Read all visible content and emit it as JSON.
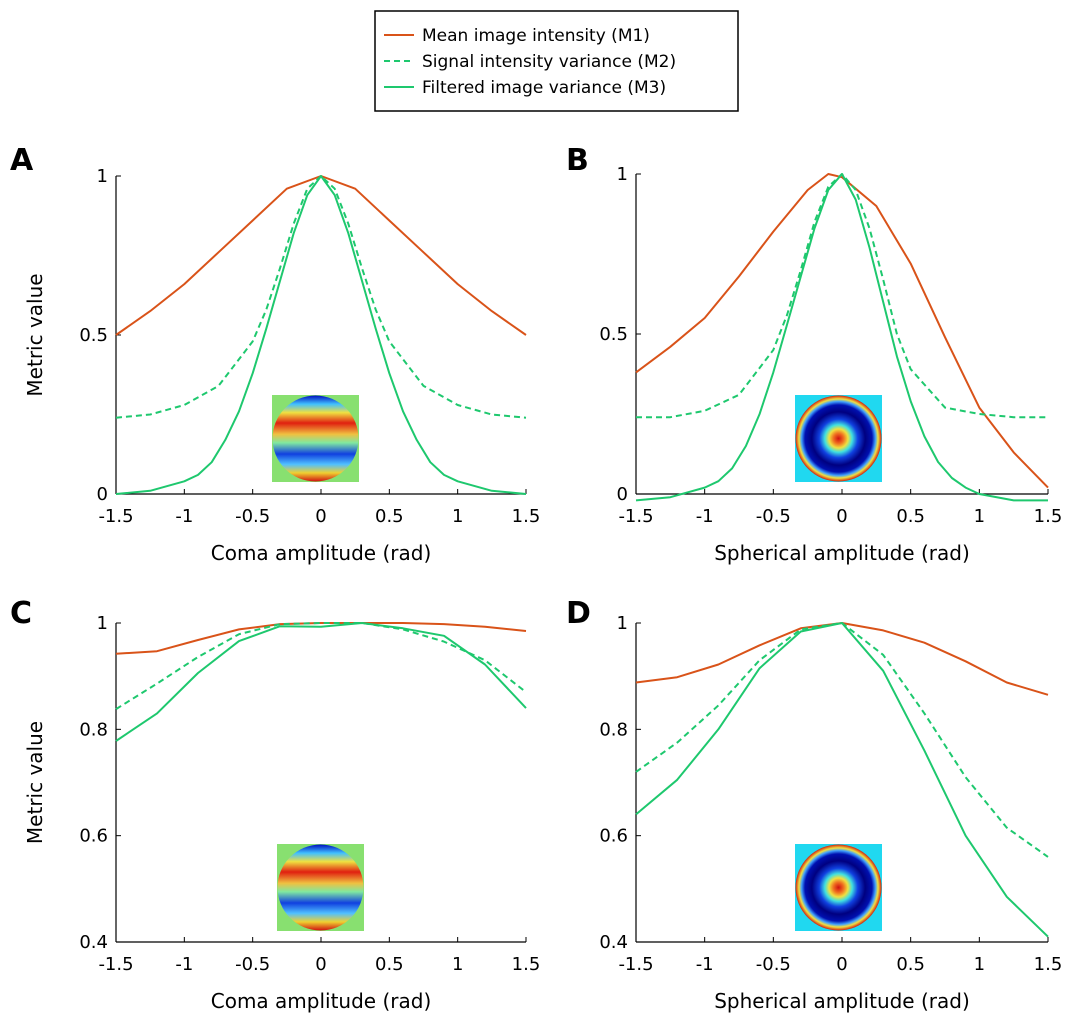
{
  "legend": {
    "entries": [
      {
        "label": "Mean image intensity (M1)",
        "color": "#d95319",
        "dash": "solid"
      },
      {
        "label": "Signal intensity variance (M2)",
        "color": "#1ec86e",
        "dash": "dashed"
      },
      {
        "label": "Filtered image variance (M3)",
        "color": "#1ec86e",
        "dash": "solid"
      }
    ]
  },
  "chart_data": [
    {
      "panel": "A",
      "type": "line",
      "xlabel": "Coma amplitude (rad)",
      "ylabel": "Metric value",
      "xlim": [
        -1.5,
        1.5
      ],
      "ylim": [
        0,
        1
      ],
      "xticks": [
        "-1.5",
        "-1",
        "-0.5",
        "0",
        "0.5",
        "1",
        "1.5"
      ],
      "yticks": [
        "0",
        "0.5",
        "1"
      ],
      "inset": "coma",
      "series": [
        {
          "name": "Mean image intensity (M1)",
          "x": [
            -1.5,
            -1.25,
            -1,
            -0.75,
            -0.5,
            -0.25,
            0,
            0.25,
            0.5,
            0.75,
            1,
            1.25,
            1.5
          ],
          "values": [
            0.5,
            0.575,
            0.66,
            0.76,
            0.86,
            0.96,
            1.0,
            0.96,
            0.86,
            0.76,
            0.66,
            0.575,
            0.5
          ]
        },
        {
          "name": "Signal intensity variance (M2)",
          "x": [
            -1.5,
            -1.25,
            -1,
            -0.75,
            -0.5,
            -0.4,
            -0.3,
            -0.2,
            -0.1,
            0,
            0.1,
            0.2,
            0.3,
            0.4,
            0.5,
            0.75,
            1,
            1.25,
            1.5
          ],
          "values": [
            0.24,
            0.25,
            0.28,
            0.34,
            0.48,
            0.58,
            0.71,
            0.85,
            0.96,
            1.0,
            0.96,
            0.85,
            0.71,
            0.58,
            0.48,
            0.34,
            0.28,
            0.25,
            0.24
          ]
        },
        {
          "name": "Filtered image variance (M3)",
          "x": [
            -1.5,
            -1.25,
            -1,
            -0.9,
            -0.8,
            -0.7,
            -0.6,
            -0.5,
            -0.4,
            -0.3,
            -0.2,
            -0.1,
            0,
            0.1,
            0.2,
            0.3,
            0.4,
            0.5,
            0.6,
            0.7,
            0.8,
            0.9,
            1,
            1.25,
            1.5
          ],
          "values": [
            0,
            0.01,
            0.04,
            0.06,
            0.1,
            0.17,
            0.26,
            0.38,
            0.52,
            0.67,
            0.82,
            0.94,
            1.0,
            0.94,
            0.82,
            0.67,
            0.52,
            0.38,
            0.26,
            0.17,
            0.1,
            0.06,
            0.04,
            0.01,
            0
          ]
        }
      ]
    },
    {
      "panel": "B",
      "type": "line",
      "xlabel": "Spherical amplitude (rad)",
      "ylabel": "",
      "xlim": [
        -1.5,
        1.5
      ],
      "ylim": [
        0,
        1
      ],
      "xticks": [
        "-1.5",
        "-1",
        "-0.5",
        "0",
        "0.5",
        "1",
        "1.5"
      ],
      "yticks": [
        "0",
        "0.5",
        "1"
      ],
      "inset": "spherical",
      "series": [
        {
          "name": "Mean image intensity (M1)",
          "x": [
            -1.5,
            -1.25,
            -1,
            -0.75,
            -0.5,
            -0.25,
            -0.1,
            0,
            0.25,
            0.5,
            0.75,
            1,
            1.25,
            1.5
          ],
          "values": [
            0.38,
            0.46,
            0.55,
            0.68,
            0.82,
            0.95,
            1.0,
            0.99,
            0.9,
            0.72,
            0.49,
            0.27,
            0.13,
            0.02
          ]
        },
        {
          "name": "Signal intensity variance (M2)",
          "x": [
            -1.5,
            -1.25,
            -1,
            -0.75,
            -0.5,
            -0.4,
            -0.3,
            -0.2,
            -0.1,
            0,
            0.1,
            0.2,
            0.3,
            0.4,
            0.5,
            0.75,
            1,
            1.25,
            1.5
          ],
          "values": [
            0.24,
            0.24,
            0.26,
            0.31,
            0.45,
            0.56,
            0.7,
            0.85,
            0.96,
            1.0,
            0.95,
            0.83,
            0.67,
            0.5,
            0.39,
            0.27,
            0.25,
            0.24,
            0.24
          ]
        },
        {
          "name": "Filtered image variance (M3)",
          "x": [
            -1.5,
            -1.25,
            -1,
            -0.9,
            -0.8,
            -0.7,
            -0.6,
            -0.5,
            -0.4,
            -0.3,
            -0.2,
            -0.1,
            0,
            0.1,
            0.2,
            0.3,
            0.4,
            0.5,
            0.6,
            0.7,
            0.8,
            0.9,
            1,
            1.25,
            1.5
          ],
          "values": [
            -0.02,
            -0.01,
            0.02,
            0.04,
            0.08,
            0.15,
            0.25,
            0.38,
            0.53,
            0.68,
            0.83,
            0.95,
            1.0,
            0.92,
            0.77,
            0.6,
            0.43,
            0.29,
            0.18,
            0.1,
            0.05,
            0.02,
            0.0,
            -0.02,
            -0.02
          ]
        }
      ]
    },
    {
      "panel": "C",
      "type": "line",
      "xlabel": "Coma amplitude (rad)",
      "ylabel": "Metric value",
      "xlim": [
        -1.5,
        1.5
      ],
      "ylim": [
        0.4,
        1
      ],
      "xticks": [
        "-1.5",
        "-1",
        "-0.5",
        "0",
        "0.5",
        "1",
        "1.5"
      ],
      "yticks": [
        "0.4",
        "0.6",
        "0.8",
        "1"
      ],
      "inset": "coma",
      "series": [
        {
          "name": "Mean image intensity (M1)",
          "x": [
            -1.5,
            -1.2,
            -0.9,
            -0.6,
            -0.3,
            0,
            0.3,
            0.6,
            0.9,
            1.2,
            1.5
          ],
          "values": [
            0.942,
            0.947,
            0.968,
            0.988,
            0.998,
            1.0,
            1.0,
            1.0,
            0.998,
            0.993,
            0.985
          ]
        },
        {
          "name": "Signal intensity variance (M2)",
          "x": [
            -1.5,
            -1.2,
            -0.9,
            -0.6,
            -0.3,
            0,
            0.3,
            0.6,
            0.9,
            1.2,
            1.5
          ],
          "values": [
            0.838,
            0.886,
            0.936,
            0.979,
            0.998,
            1.0,
            1.0,
            0.988,
            0.965,
            0.93,
            0.87
          ]
        },
        {
          "name": "Filtered image variance (M3)",
          "x": [
            -1.5,
            -1.2,
            -0.9,
            -0.6,
            -0.3,
            0,
            0.3,
            0.6,
            0.9,
            1.2,
            1.5
          ],
          "values": [
            0.778,
            0.83,
            0.906,
            0.966,
            0.994,
            0.993,
            1.0,
            0.99,
            0.976,
            0.922,
            0.84
          ]
        }
      ]
    },
    {
      "panel": "D",
      "type": "line",
      "xlabel": "Spherical amplitude (rad)",
      "ylabel": "",
      "xlim": [
        -1.5,
        1.5
      ],
      "ylim": [
        0.4,
        1
      ],
      "xticks": [
        "-1.5",
        "-1",
        "-0.5",
        "0",
        "0.5",
        "1",
        "1.5"
      ],
      "yticks": [
        "0.4",
        "0.6",
        "0.8",
        "1"
      ],
      "inset": "spherical",
      "series": [
        {
          "name": "Mean image intensity (M1)",
          "x": [
            -1.5,
            -1.2,
            -0.9,
            -0.6,
            -0.3,
            0,
            0.3,
            0.6,
            0.9,
            1.2,
            1.5
          ],
          "values": [
            0.888,
            0.898,
            0.922,
            0.958,
            0.99,
            1.0,
            0.986,
            0.963,
            0.928,
            0.888,
            0.865
          ]
        },
        {
          "name": "Signal intensity variance (M2)",
          "x": [
            -1.5,
            -1.2,
            -0.9,
            -0.6,
            -0.3,
            0,
            0.3,
            0.6,
            0.9,
            1.2,
            1.5
          ],
          "values": [
            0.72,
            0.775,
            0.845,
            0.93,
            0.988,
            1.0,
            0.94,
            0.83,
            0.71,
            0.615,
            0.56
          ]
        },
        {
          "name": "Filtered image variance (M3)",
          "x": [
            -1.5,
            -1.2,
            -0.9,
            -0.6,
            -0.3,
            0,
            0.3,
            0.6,
            0.9,
            1.2,
            1.5
          ],
          "values": [
            0.64,
            0.705,
            0.8,
            0.915,
            0.984,
            1.0,
            0.91,
            0.76,
            0.6,
            0.485,
            0.41
          ]
        }
      ]
    }
  ]
}
